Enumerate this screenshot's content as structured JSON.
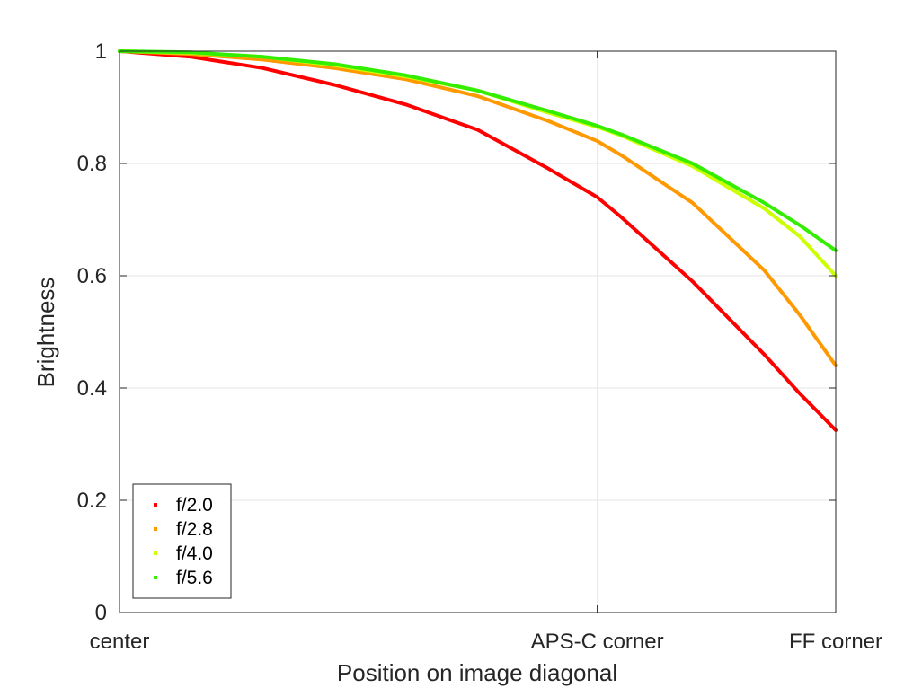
{
  "chart_data": {
    "type": "line",
    "xlabel": "Position on image diagonal",
    "ylabel": "Brightness",
    "xlim": [
      0,
      1
    ],
    "ylim": [
      0,
      1
    ],
    "x_ticks": [
      {
        "value": 0,
        "label": "center"
      },
      {
        "value": 0.667,
        "label": "APS-C corner"
      },
      {
        "value": 1,
        "label": "FF corner"
      }
    ],
    "y_ticks": [
      {
        "value": 0,
        "label": "0"
      },
      {
        "value": 0.2,
        "label": "0.2"
      },
      {
        "value": 0.4,
        "label": "0.4"
      },
      {
        "value": 0.6,
        "label": "0.6"
      },
      {
        "value": 0.8,
        "label": "0.8"
      },
      {
        "value": 1,
        "label": "1"
      }
    ],
    "grid": true,
    "legend_position": "bottom-left",
    "x": [
      0,
      0.1,
      0.2,
      0.3,
      0.4,
      0.5,
      0.6,
      0.667,
      0.7,
      0.8,
      0.9,
      0.95,
      1.0
    ],
    "series": [
      {
        "name": "f/2.0",
        "color": "#ff0000",
        "values": [
          1.0,
          0.99,
          0.97,
          0.94,
          0.905,
          0.86,
          0.79,
          0.74,
          0.705,
          0.59,
          0.46,
          0.39,
          0.325
        ]
      },
      {
        "name": "f/2.8",
        "color": "#ff9900",
        "values": [
          1.0,
          0.995,
          0.985,
          0.97,
          0.95,
          0.92,
          0.875,
          0.84,
          0.815,
          0.73,
          0.61,
          0.53,
          0.44
        ]
      },
      {
        "name": "f/4.0",
        "color": "#ccff00",
        "values": [
          1.0,
          0.997,
          0.99,
          0.975,
          0.955,
          0.93,
          0.89,
          0.865,
          0.85,
          0.795,
          0.72,
          0.67,
          0.6
        ]
      },
      {
        "name": "f/5.6",
        "color": "#33ee00",
        "values": [
          1.0,
          0.998,
          0.99,
          0.977,
          0.957,
          0.93,
          0.893,
          0.867,
          0.852,
          0.8,
          0.73,
          0.69,
          0.645
        ]
      }
    ]
  }
}
